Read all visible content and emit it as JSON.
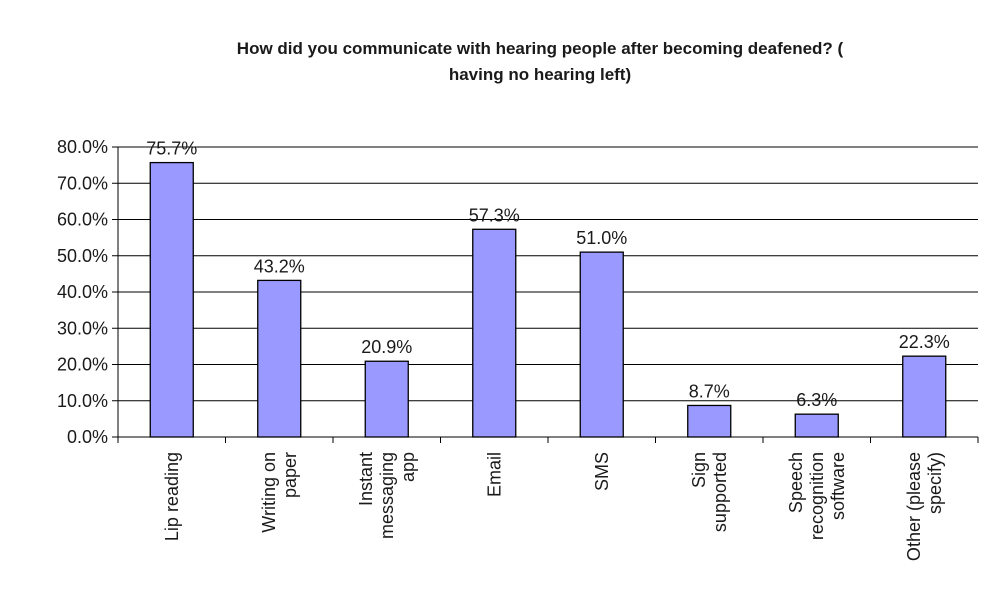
{
  "chart_data": {
    "type": "bar",
    "title": "How did you communicate with hearing people after becoming deafened? (having no hearing left)",
    "title_lines": [
      "How did you communicate with hearing people after becoming deafened? (",
      "having no hearing left)"
    ],
    "xlabel": "",
    "ylabel": "",
    "categories": [
      "Lip reading",
      "Writing on paper",
      "Instant messaging app",
      "Email",
      "SMS",
      "Sign supported",
      "Speech recognition software",
      "Other (please specify)"
    ],
    "category_lines": [
      [
        "Lip reading"
      ],
      [
        "Writing on",
        "paper"
      ],
      [
        "Instant",
        "messaging",
        "app"
      ],
      [
        "Email"
      ],
      [
        "SMS"
      ],
      [
        "Sign",
        "supported"
      ],
      [
        "Speech",
        "recognition",
        "software"
      ],
      [
        "Other (please",
        "specify)"
      ]
    ],
    "values": [
      75.7,
      43.2,
      20.9,
      57.3,
      51.0,
      8.7,
      6.3,
      22.3
    ],
    "value_labels": [
      "75.7%",
      "43.2%",
      "20.9%",
      "57.3%",
      "51.0%",
      "8.7%",
      "6.3%",
      "22.3%"
    ],
    "ylim": [
      0,
      80
    ],
    "yticks": [
      0,
      10,
      20,
      30,
      40,
      50,
      60,
      70,
      80
    ],
    "ytick_labels": [
      "0.0%",
      "10.0%",
      "20.0%",
      "30.0%",
      "40.0%",
      "50.0%",
      "60.0%",
      "70.0%",
      "80.0%"
    ],
    "grid": true,
    "legend": "none",
    "colors": {
      "bar_fill": "#9999ff",
      "bar_stroke": "#000000",
      "grid": "#000000",
      "background": "#ffffff"
    }
  }
}
